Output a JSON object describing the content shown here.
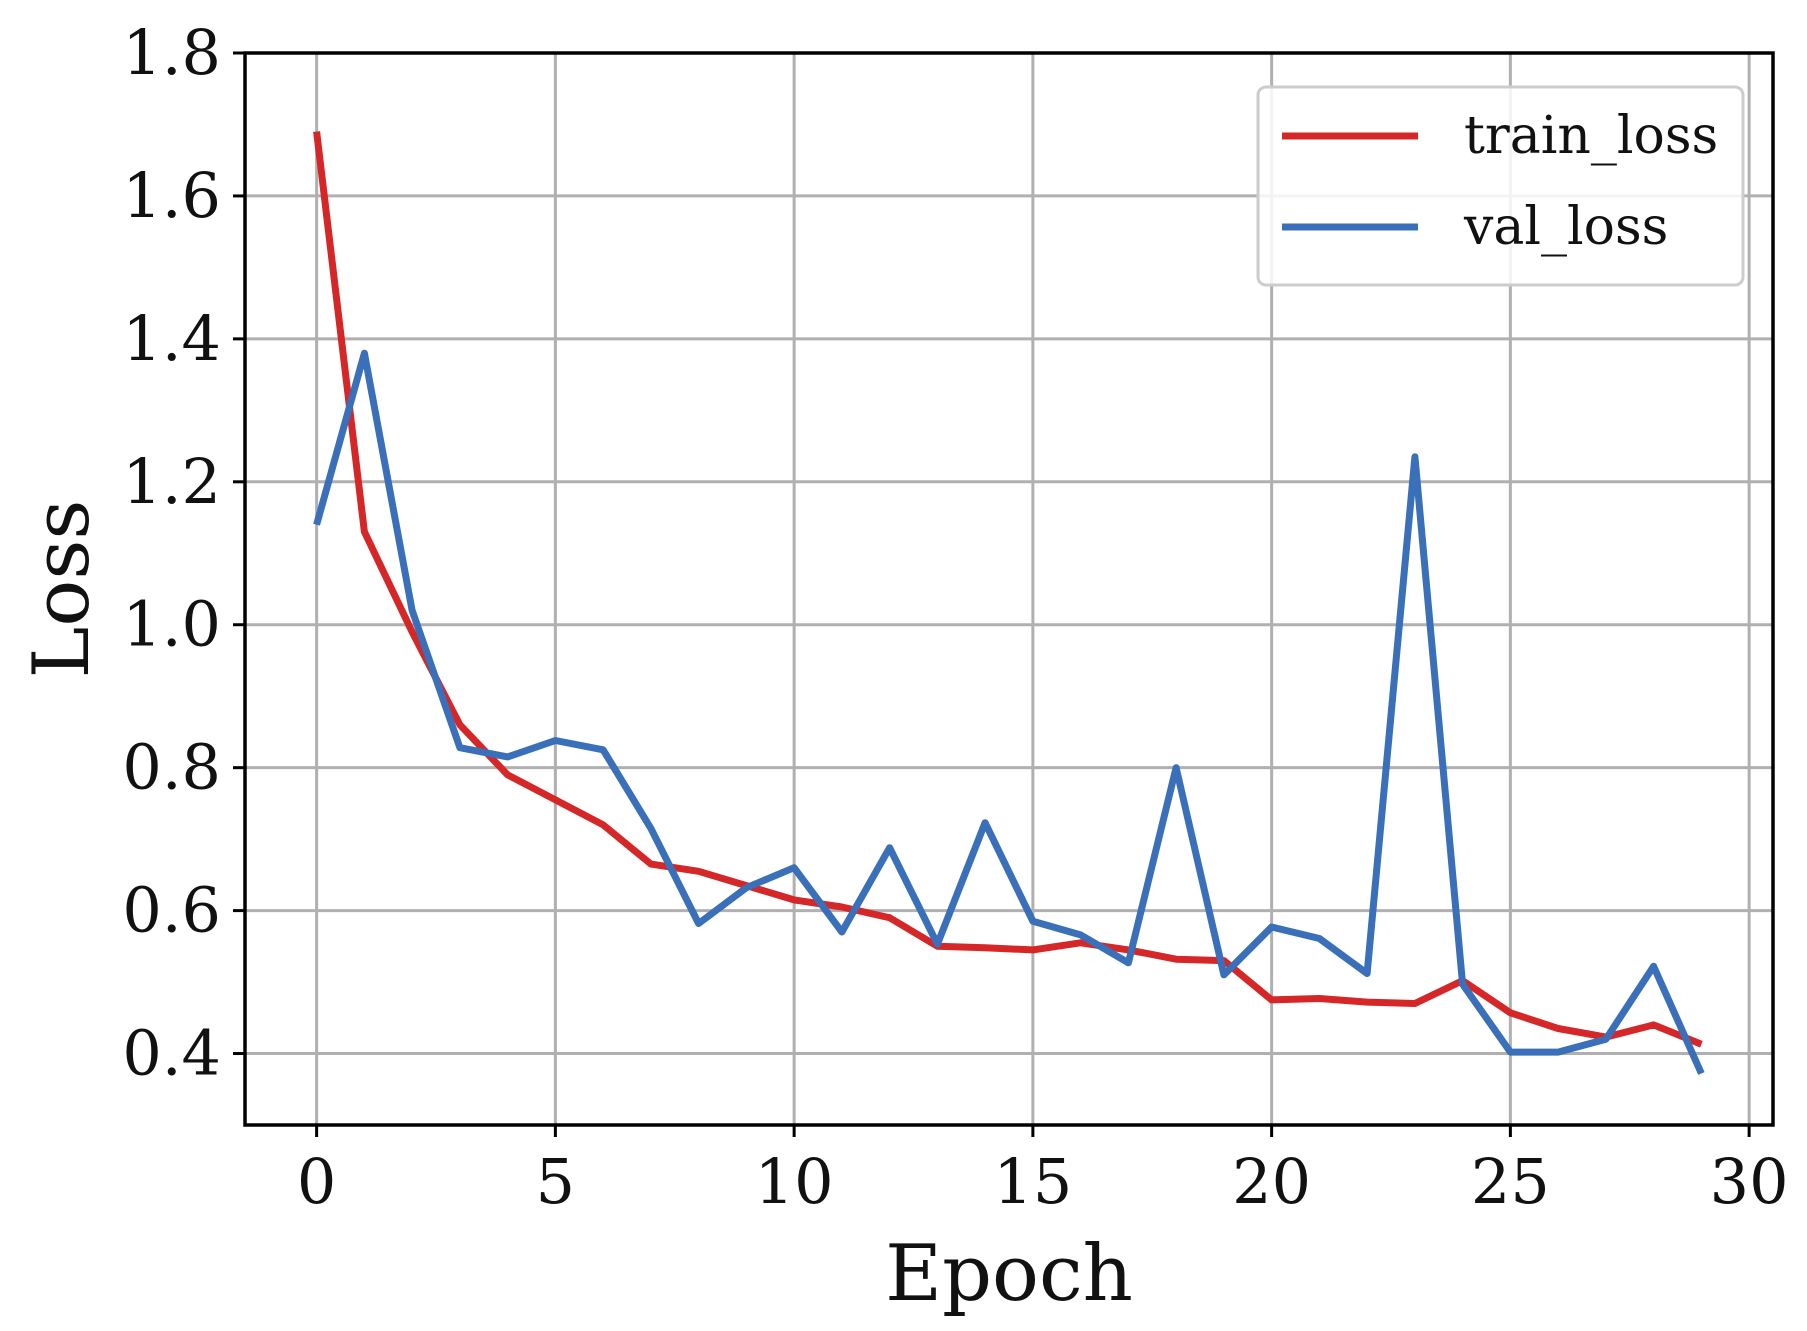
{
  "chart_data": {
    "type": "line",
    "title": "",
    "xlabel": "Epoch",
    "ylabel": "Loss",
    "xlim": [
      -1.5,
      30.5
    ],
    "ylim": [
      0.3,
      1.8
    ],
    "xticks": [
      0,
      5,
      10,
      15,
      20,
      25,
      30
    ],
    "yticks": [
      0.4,
      0.6,
      0.8,
      1.0,
      1.2,
      1.4,
      1.6,
      1.8
    ],
    "xtick_labels": [
      "0",
      "5",
      "10",
      "15",
      "20",
      "25",
      "30"
    ],
    "ytick_labels": [
      "0.4",
      "0.6",
      "0.8",
      "1.0",
      "1.2",
      "1.4",
      "1.6",
      "1.8"
    ],
    "grid": true,
    "legend_position": "top-right",
    "x": [
      0,
      1,
      2,
      3,
      4,
      5,
      6,
      7,
      8,
      9,
      10,
      11,
      12,
      13,
      14,
      15,
      16,
      17,
      18,
      19,
      20,
      21,
      22,
      23,
      24,
      25,
      26,
      27,
      28,
      29
    ],
    "series": [
      {
        "name": "train_loss",
        "color": "#d62728",
        "values": [
          1.69,
          1.13,
          0.99,
          0.86,
          0.79,
          0.755,
          0.72,
          0.665,
          0.655,
          0.635,
          0.615,
          0.605,
          0.59,
          0.55,
          0.548,
          0.545,
          0.555,
          0.545,
          0.532,
          0.53,
          0.475,
          0.477,
          0.472,
          0.47,
          0.502,
          0.457,
          0.435,
          0.423,
          0.44,
          0.413
        ]
      },
      {
        "name": "val_loss",
        "color": "#3a6fb9",
        "values": [
          1.14,
          1.38,
          1.02,
          0.828,
          0.815,
          0.838,
          0.825,
          0.715,
          0.582,
          0.632,
          0.66,
          0.57,
          0.688,
          0.553,
          0.723,
          0.585,
          0.566,
          0.527,
          0.8,
          0.51,
          0.577,
          0.561,
          0.512,
          1.235,
          0.497,
          0.402,
          0.402,
          0.42,
          0.522,
          0.372
        ]
      }
    ]
  }
}
